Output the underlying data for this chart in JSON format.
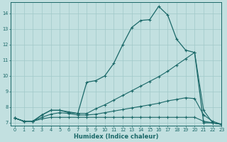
{
  "bg_color": "#c2e0e0",
  "grid_color": "#a0c8c8",
  "line_color": "#1a6868",
  "xlabel": "Humidex (Indice chaleur)",
  "xlim": [
    -0.5,
    23
  ],
  "ylim": [
    6.8,
    14.7
  ],
  "yticks": [
    7,
    8,
    9,
    10,
    11,
    12,
    13,
    14
  ],
  "xticks": [
    0,
    1,
    2,
    3,
    4,
    5,
    6,
    7,
    8,
    9,
    10,
    11,
    12,
    13,
    14,
    15,
    16,
    17,
    18,
    19,
    20,
    21,
    22,
    23
  ],
  "line1_x": [
    0,
    1,
    2,
    3,
    4,
    5,
    6,
    7,
    8,
    9,
    10,
    11,
    12,
    13,
    14,
    15,
    16,
    17,
    18,
    19,
    20,
    21,
    22,
    23
  ],
  "line1_y": [
    7.3,
    7.1,
    7.1,
    7.5,
    7.8,
    7.8,
    7.7,
    7.6,
    9.6,
    9.7,
    10.0,
    10.8,
    12.0,
    13.1,
    13.55,
    13.6,
    14.45,
    13.9,
    12.35,
    11.65,
    11.5,
    7.0,
    7.0,
    6.9
  ],
  "line2_x": [
    0,
    1,
    2,
    3,
    4,
    5,
    6,
    7,
    8,
    9,
    10,
    11,
    12,
    13,
    14,
    15,
    16,
    17,
    18,
    19,
    20,
    21,
    22,
    23
  ],
  "line2_y": [
    7.3,
    7.1,
    7.1,
    7.5,
    7.8,
    7.8,
    7.65,
    7.6,
    7.6,
    7.9,
    8.15,
    8.45,
    8.75,
    9.05,
    9.35,
    9.65,
    9.95,
    10.3,
    10.7,
    11.1,
    11.5,
    7.8,
    7.0,
    6.9
  ],
  "line3_x": [
    0,
    1,
    2,
    3,
    4,
    5,
    6,
    7,
    8,
    9,
    10,
    11,
    12,
    13,
    14,
    15,
    16,
    17,
    18,
    19,
    20,
    21,
    22,
    23
  ],
  "line3_y": [
    7.3,
    7.1,
    7.1,
    7.35,
    7.55,
    7.65,
    7.6,
    7.5,
    7.5,
    7.55,
    7.65,
    7.75,
    7.85,
    7.95,
    8.05,
    8.15,
    8.25,
    8.4,
    8.5,
    8.6,
    8.55,
    7.5,
    7.1,
    6.9
  ],
  "line4_x": [
    0,
    1,
    2,
    3,
    4,
    5,
    6,
    7,
    8,
    9,
    10,
    11,
    12,
    13,
    14,
    15,
    16,
    17,
    18,
    19,
    20,
    21,
    22,
    23
  ],
  "line4_y": [
    7.3,
    7.1,
    7.1,
    7.25,
    7.35,
    7.35,
    7.35,
    7.35,
    7.35,
    7.35,
    7.35,
    7.35,
    7.35,
    7.35,
    7.35,
    7.35,
    7.35,
    7.35,
    7.35,
    7.35,
    7.35,
    7.1,
    7.0,
    6.9
  ]
}
